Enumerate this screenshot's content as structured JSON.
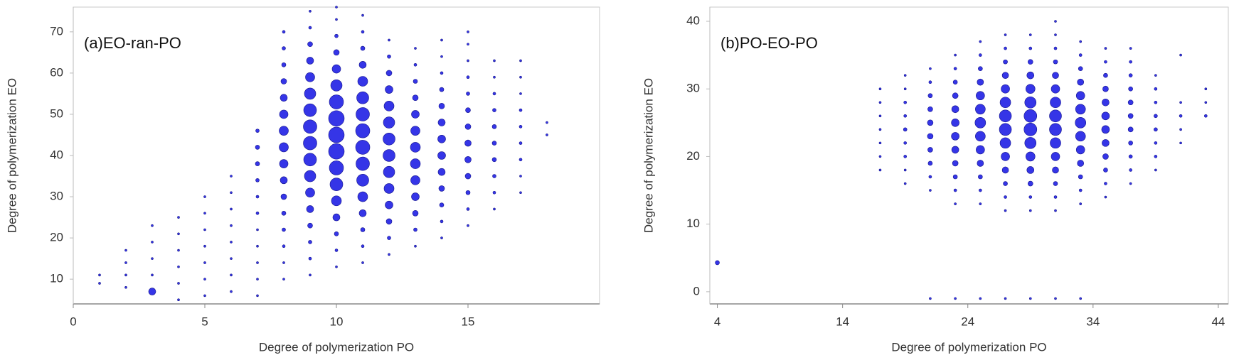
{
  "chart_data": [
    {
      "type": "bubble",
      "annotation": "(a)EO-ran-PO",
      "x_label": "Degree of polymerization PO",
      "y_label": "Degree of polymerization EO",
      "color": "#2a2ae6",
      "edge_color": "#14148c",
      "xlim": [
        0,
        20
      ],
      "ylim": [
        4,
        76
      ],
      "xticks": [
        0,
        5,
        10,
        15
      ],
      "yticks": [
        10,
        20,
        30,
        40,
        50,
        60,
        70
      ],
      "columns": [
        {
          "x": 1,
          "values": [
            9,
            11
          ],
          "sizes": [
            1.5,
            1.5
          ]
        },
        {
          "x": 2,
          "values": [
            8,
            11,
            14,
            17
          ],
          "sizes": [
            1.5,
            1.5,
            1.5,
            1.5
          ]
        },
        {
          "x": 3,
          "values": [
            7,
            11,
            15,
            19,
            23
          ],
          "sizes": [
            5,
            1.5,
            1.5,
            1.5,
            1.5
          ]
        },
        {
          "x": 4,
          "values": [
            5,
            9,
            13,
            17,
            21,
            25
          ],
          "sizes": [
            1.5,
            1.5,
            1.5,
            1.5,
            1.5,
            1.5
          ]
        },
        {
          "x": 5,
          "values": [
            6,
            10,
            14,
            18,
            22,
            26,
            30
          ],
          "sizes": [
            1.5,
            1.5,
            1.5,
            1.5,
            1.5,
            1.5,
            1.5
          ]
        },
        {
          "x": 6,
          "values": [
            7,
            11,
            15,
            19,
            23,
            27,
            31,
            35
          ],
          "sizes": [
            1.5,
            1.5,
            1.5,
            1.5,
            1.5,
            1.5,
            1.5,
            1.5
          ]
        },
        {
          "x": 7,
          "values": [
            6,
            10,
            14,
            18,
            22,
            26,
            30,
            34,
            38,
            42,
            46
          ],
          "sizes": [
            1.5,
            1.5,
            1.5,
            1.5,
            1.5,
            2,
            2,
            2.5,
            3,
            3,
            2.5
          ]
        },
        {
          "x": 8,
          "values": [
            10,
            14,
            18,
            22,
            26,
            30,
            34,
            38,
            42,
            46,
            50,
            54,
            58,
            62,
            66,
            70
          ],
          "sizes": [
            1.5,
            1.5,
            2,
            2.5,
            3,
            4,
            5,
            6,
            6.5,
            6.5,
            6,
            5,
            4,
            3,
            2.5,
            2
          ]
        },
        {
          "x": 9,
          "values": [
            11,
            15,
            19,
            23,
            27,
            31,
            35,
            39,
            43,
            47,
            51,
            55,
            59,
            63,
            67,
            71,
            75
          ],
          "sizes": [
            1.5,
            2,
            2.5,
            3.5,
            5,
            6.5,
            8,
            9,
            9.5,
            9.5,
            9,
            8,
            6.5,
            5,
            3.5,
            2,
            1.5
          ]
        },
        {
          "x": 10,
          "values": [
            13,
            17,
            21,
            25,
            29,
            33,
            37,
            41,
            45,
            49,
            53,
            57,
            61,
            65,
            69,
            73,
            76
          ],
          "sizes": [
            1.5,
            2,
            3,
            5,
            7,
            9,
            10,
            11,
            11,
            11,
            10,
            8,
            6,
            4,
            2.5,
            1.5,
            1.5
          ]
        },
        {
          "x": 11,
          "values": [
            14,
            18,
            22,
            26,
            30,
            34,
            38,
            42,
            46,
            50,
            54,
            58,
            62,
            66,
            70,
            74
          ],
          "sizes": [
            1.5,
            2,
            3,
            5,
            7,
            8.5,
            9.5,
            10,
            10,
            9.5,
            8.5,
            7,
            5,
            3,
            2,
            1.5
          ]
        },
        {
          "x": 12,
          "values": [
            16,
            20,
            24,
            28,
            32,
            36,
            40,
            44,
            48,
            52,
            56,
            60,
            64,
            68
          ],
          "sizes": [
            1.5,
            2.5,
            4,
            5.5,
            7,
            8,
            8.5,
            8.5,
            8,
            7,
            5.5,
            4,
            2.5,
            1.5
          ]
        },
        {
          "x": 13,
          "values": [
            18,
            22,
            26,
            30,
            34,
            38,
            42,
            46,
            50,
            54,
            58,
            62,
            66
          ],
          "sizes": [
            1.5,
            2.5,
            4,
            5.5,
            6.5,
            7,
            7,
            6.5,
            5.5,
            4,
            3,
            2,
            1.5
          ]
        },
        {
          "x": 14,
          "values": [
            20,
            24,
            28,
            32,
            36,
            40,
            44,
            48,
            52,
            56,
            60,
            64,
            68
          ],
          "sizes": [
            1.5,
            2,
            3,
            4,
            5,
            5.5,
            5.5,
            5,
            4,
            3,
            2,
            1.5,
            1.5
          ]
        },
        {
          "x": 15,
          "values": [
            23,
            27,
            31,
            35,
            39,
            43,
            47,
            51,
            55,
            59,
            63,
            67,
            70
          ],
          "sizes": [
            1.5,
            2,
            3,
            4,
            4.5,
            4.5,
            4,
            3.5,
            2.5,
            2,
            1.5,
            1.5,
            1.5
          ]
        },
        {
          "x": 16,
          "values": [
            27,
            31,
            35,
            39,
            43,
            47,
            51,
            55,
            59,
            63
          ],
          "sizes": [
            1.5,
            2,
            2.5,
            3,
            3,
            3,
            2.5,
            2,
            1.5,
            1.5
          ]
        },
        {
          "x": 17,
          "values": [
            31,
            35,
            39,
            43,
            47,
            51,
            55,
            59,
            63
          ],
          "sizes": [
            1.5,
            1.5,
            2,
            2,
            2,
            2,
            1.5,
            1.5,
            1.5
          ]
        },
        {
          "x": 18,
          "values": [
            45,
            48
          ],
          "sizes": [
            1.5,
            1.5
          ]
        }
      ]
    },
    {
      "type": "bubble",
      "annotation": "(b)PO-EO-PO",
      "x_label": "Degree of polymerization PO",
      "y_label": "Degree of polymerization EO",
      "color": "#2a2ae6",
      "edge_color": "#14148c",
      "xlim": [
        3.4,
        44.8
      ],
      "ylim": [
        -1.8,
        42.1
      ],
      "xticks": [
        4,
        14,
        24,
        34,
        44
      ],
      "yticks": [
        0,
        10,
        20,
        30,
        40
      ],
      "columns": [
        {
          "x": 4,
          "values": [
            4.3
          ],
          "sizes": [
            3
          ]
        },
        {
          "x": 17,
          "values": [
            18,
            20,
            22,
            24,
            26,
            28,
            30
          ],
          "sizes": [
            1.5,
            1.5,
            1.5,
            1.5,
            1.5,
            1.5,
            1.5
          ]
        },
        {
          "x": 19,
          "values": [
            16,
            18,
            20,
            22,
            24,
            26,
            28,
            30,
            32
          ],
          "sizes": [
            1.5,
            1.5,
            2,
            2,
            2.5,
            2,
            2,
            1.5,
            1.5
          ]
        },
        {
          "x": 21,
          "values": [
            -1,
            15,
            17,
            19,
            21,
            23,
            25,
            27,
            29,
            31,
            33
          ],
          "sizes": [
            1.5,
            1.5,
            2,
            3,
            3.5,
            4,
            4,
            3.5,
            3,
            2,
            1.5
          ]
        },
        {
          "x": 23,
          "values": [
            -1,
            13,
            15,
            17,
            19,
            21,
            23,
            25,
            27,
            29,
            31,
            33,
            35
          ],
          "sizes": [
            1.5,
            1.5,
            2,
            3,
            4,
            5,
            5.5,
            5.5,
            5,
            4,
            3,
            2,
            1.5
          ]
        },
        {
          "x": 25,
          "values": [
            -1,
            13,
            15,
            17,
            19,
            21,
            23,
            25,
            27,
            29,
            31,
            33,
            35,
            37
          ],
          "sizes": [
            1.5,
            1.5,
            2,
            3,
            4.5,
            6,
            7,
            7.5,
            7,
            6,
            4.5,
            3,
            2,
            1.5
          ]
        },
        {
          "x": 27,
          "values": [
            -1,
            12,
            14,
            16,
            18,
            20,
            22,
            24,
            26,
            28,
            30,
            32,
            34,
            36,
            38
          ],
          "sizes": [
            1.5,
            1.5,
            2,
            3,
            4.5,
            6,
            7.5,
            8.5,
            8.5,
            7.5,
            6,
            4.5,
            3,
            2,
            1.5
          ]
        },
        {
          "x": 29,
          "values": [
            -1,
            12,
            14,
            16,
            18,
            20,
            22,
            24,
            26,
            28,
            30,
            32,
            34,
            36,
            38
          ],
          "sizes": [
            1.5,
            1.5,
            2,
            3.5,
            5,
            6.5,
            8,
            9,
            9,
            8,
            6.5,
            5,
            3.5,
            2,
            1.5
          ]
        },
        {
          "x": 31,
          "values": [
            -1,
            12,
            14,
            16,
            18,
            20,
            22,
            24,
            26,
            28,
            30,
            32,
            34,
            36,
            38,
            40
          ],
          "sizes": [
            1.5,
            1.5,
            2,
            3,
            4.5,
            6,
            7.5,
            8.5,
            8.5,
            7.5,
            6,
            4.5,
            3,
            2,
            1.5,
            1.5
          ]
        },
        {
          "x": 33,
          "values": [
            -1,
            13,
            15,
            17,
            19,
            21,
            23,
            25,
            27,
            29,
            31,
            33,
            35,
            37
          ],
          "sizes": [
            1.5,
            1.5,
            2,
            3,
            4.5,
            6,
            7,
            7.5,
            7,
            6,
            4.5,
            3,
            2,
            1.5
          ]
        },
        {
          "x": 35,
          "values": [
            14,
            16,
            18,
            20,
            22,
            24,
            26,
            28,
            30,
            32,
            34,
            36
          ],
          "sizes": [
            1.5,
            2,
            3,
            4,
            5,
            5.5,
            5.5,
            5,
            4,
            3,
            2,
            1.5
          ]
        },
        {
          "x": 37,
          "values": [
            16,
            18,
            20,
            22,
            24,
            26,
            28,
            30,
            32,
            34,
            36
          ],
          "sizes": [
            1.5,
            2,
            2.5,
            3,
            3.5,
            3.5,
            3.5,
            3,
            2.5,
            2,
            1.5
          ]
        },
        {
          "x": 39,
          "values": [
            18,
            20,
            22,
            24,
            26,
            28,
            30,
            32
          ],
          "sizes": [
            1.5,
            2,
            2,
            2.5,
            2.5,
            2,
            2,
            1.5
          ]
        },
        {
          "x": 41,
          "values": [
            22,
            24,
            26,
            28,
            35
          ],
          "sizes": [
            1.5,
            1.5,
            2,
            1.5,
            1.5
          ]
        },
        {
          "x": 43,
          "values": [
            26,
            28,
            30
          ],
          "sizes": [
            2,
            1.5,
            1.5
          ]
        }
      ]
    }
  ]
}
